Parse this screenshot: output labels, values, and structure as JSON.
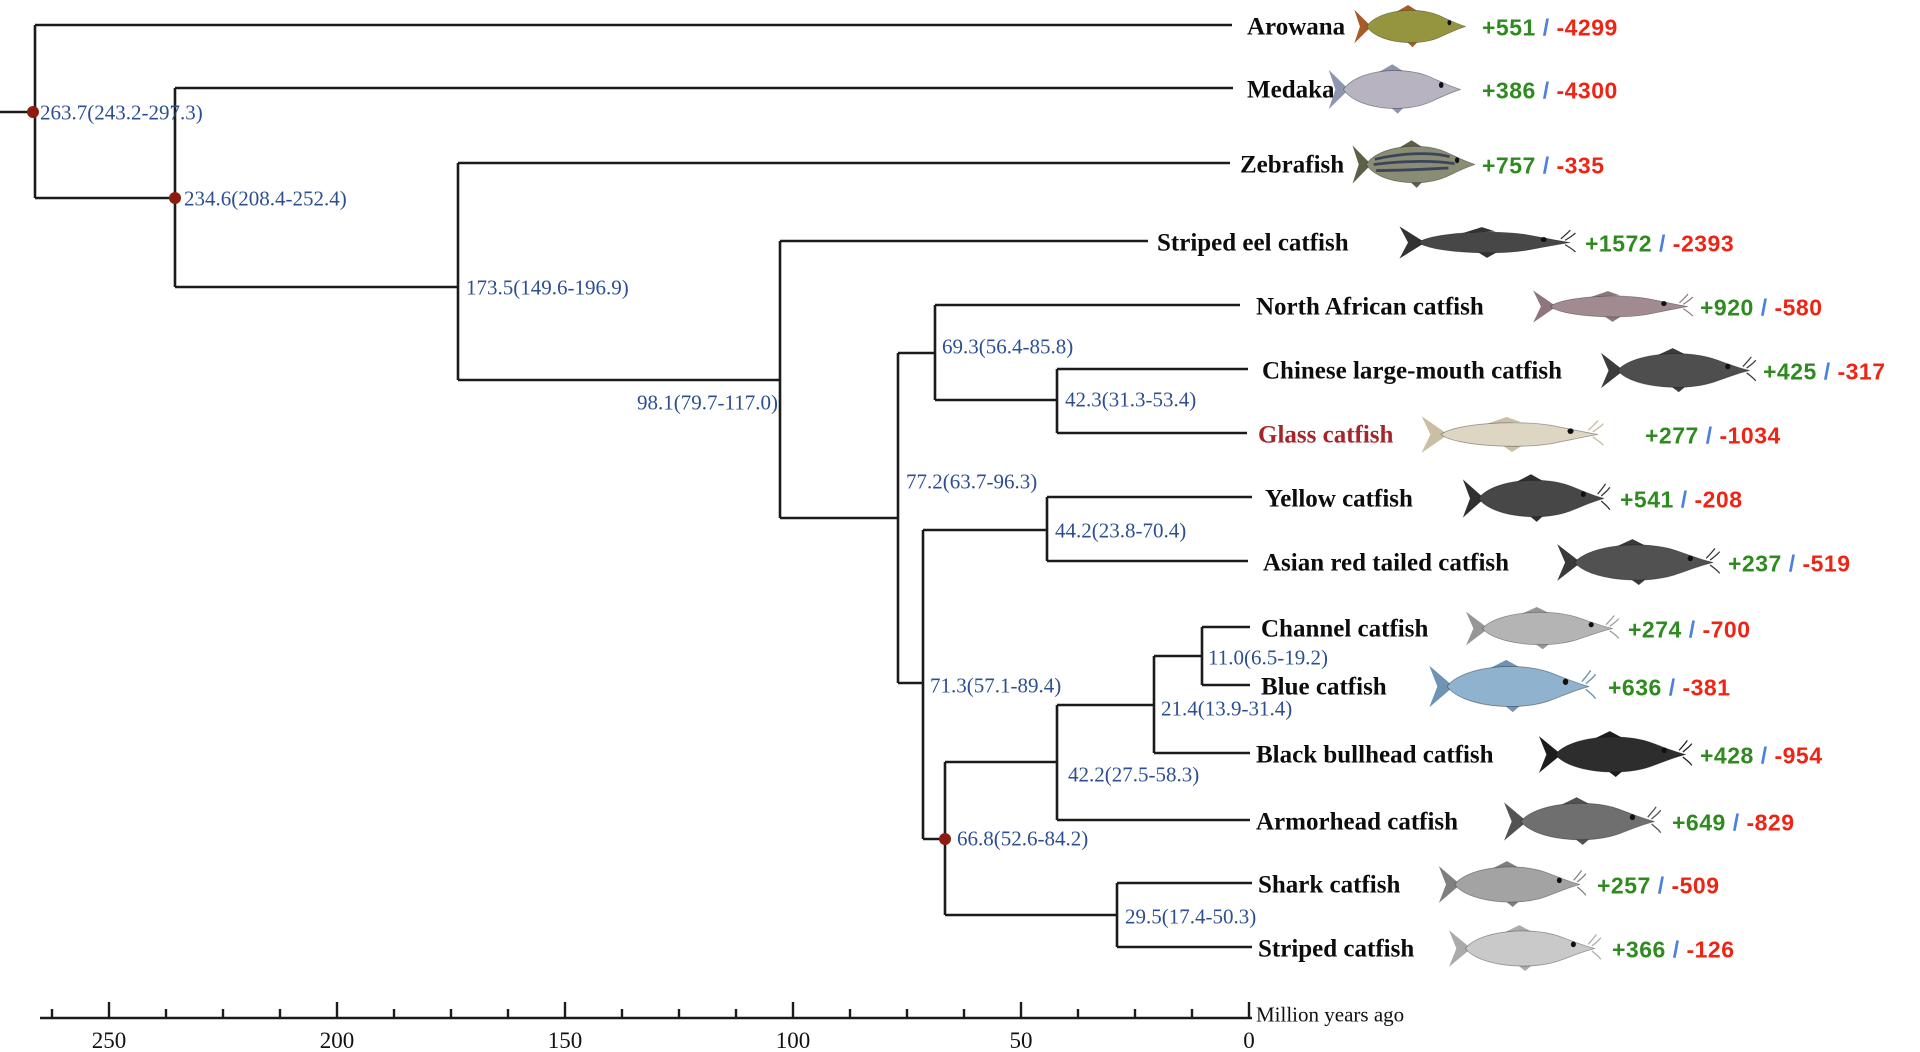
{
  "figure": {
    "axis_title": "Million years ago",
    "axis_ticks": [
      "250",
      "200",
      "150",
      "100",
      "50",
      "0"
    ]
  },
  "colors": {
    "branch": "#1b1b1b",
    "node_label": "#2d4f91",
    "node_dot": "#8e1b10",
    "gain": "#2f8b1f",
    "loss": "#ee2415",
    "slash": "#4b7fe0",
    "species_default": "#0d0d0d",
    "species_highlight": "#a6252b"
  },
  "internal_nodes": [
    {
      "id": "root",
      "label": "263.7(243.2-297.3)",
      "dot": true
    },
    {
      "id": "n234",
      "label": "234.6(208.4-252.4)",
      "dot": true
    },
    {
      "id": "n173",
      "label": "173.5(149.6-196.9)",
      "dot": false
    },
    {
      "id": "n98",
      "label": "98.1(79.7-117.0)",
      "dot": false
    },
    {
      "id": "n77",
      "label": "77.2(63.7-96.3)",
      "dot": false
    },
    {
      "id": "n69",
      "label": "69.3(56.4-85.8)",
      "dot": false
    },
    {
      "id": "n42a",
      "label": "42.3(31.3-53.4)",
      "dot": false
    },
    {
      "id": "n44",
      "label": "44.2(23.8-70.4)",
      "dot": false
    },
    {
      "id": "n71",
      "label": "71.3(57.1-89.4)",
      "dot": false
    },
    {
      "id": "n66",
      "label": "66.8(52.6-84.2)",
      "dot": true
    },
    {
      "id": "n42b",
      "label": "42.2(27.5-58.3)",
      "dot": false
    },
    {
      "id": "n21",
      "label": "21.4(13.9-31.4)",
      "dot": false
    },
    {
      "id": "n11",
      "label": "11.0(6.5-19.2)",
      "dot": false
    },
    {
      "id": "n29",
      "label": "29.5(17.4-50.3)",
      "dot": false
    }
  ],
  "species": [
    {
      "id": "arowana",
      "name": "Arowana",
      "gain": "+551",
      "loss": "-4299",
      "highlight": false,
      "fish": {
        "body": "#96953f",
        "fin": "#a85a28",
        "barbels": false,
        "stripes": false,
        "slim": false
      }
    },
    {
      "id": "medaka",
      "name": "Medaka",
      "gain": "+386",
      "loss": "-4300",
      "highlight": false,
      "fish": {
        "body": "#b7b3c0",
        "fin": "#8d96ae",
        "barbels": false,
        "stripes": false,
        "slim": false
      }
    },
    {
      "id": "zebrafish",
      "name": "Zebrafish",
      "gain": "+757",
      "loss": "-335",
      "highlight": false,
      "fish": {
        "body": "#8a8c74",
        "fin": "#5d6048",
        "barbels": false,
        "stripes": true,
        "slim": false
      }
    },
    {
      "id": "striped-eel",
      "name": "Striped eel catfish",
      "gain": "+1572",
      "loss": "-2393",
      "highlight": false,
      "fish": {
        "body": "#474747",
        "fin": "#333333",
        "barbels": true,
        "stripes": false,
        "slim": true
      }
    },
    {
      "id": "north-african",
      "name": "North African catfish",
      "gain": "+920",
      "loss": "-580",
      "highlight": false,
      "fish": {
        "body": "#a18a90",
        "fin": "#8d777d",
        "barbels": true,
        "stripes": false,
        "slim": true
      }
    },
    {
      "id": "chinese",
      "name": "Chinese large-mouth catfish",
      "gain": "+425",
      "loss": "-317",
      "highlight": false,
      "fish": {
        "body": "#4e4e4e",
        "fin": "#3c3c3c",
        "barbels": true,
        "stripes": false,
        "slim": false
      }
    },
    {
      "id": "glass",
      "name": "Glass catfish",
      "gain": "+277",
      "loss": "-1034",
      "highlight": true,
      "fish": {
        "body": "#ddd6c2",
        "fin": "#c9bfa4",
        "barbels": true,
        "stripes": false,
        "slim": true
      }
    },
    {
      "id": "yellow",
      "name": "Yellow catfish",
      "gain": "+541",
      "loss": "-208",
      "highlight": false,
      "fish": {
        "body": "#474747",
        "fin": "#303030",
        "barbels": true,
        "stripes": false,
        "slim": false
      }
    },
    {
      "id": "asian-red",
      "name": "Asian red tailed catfish",
      "gain": "+237",
      "loss": "-519",
      "highlight": false,
      "fish": {
        "body": "#515151",
        "fin": "#3a3a3a",
        "barbels": true,
        "stripes": false,
        "slim": false
      }
    },
    {
      "id": "channel",
      "name": "Channel catfish",
      "gain": "+274",
      "loss": "-700",
      "highlight": false,
      "fish": {
        "body": "#b4b4b4",
        "fin": "#969696",
        "barbels": true,
        "stripes": false,
        "slim": false
      }
    },
    {
      "id": "blue",
      "name": "Blue catfish",
      "gain": "+636",
      "loss": "-381",
      "highlight": false,
      "fish": {
        "body": "#8fb3cf",
        "fin": "#6f93b3",
        "barbels": true,
        "stripes": false,
        "slim": false
      }
    },
    {
      "id": "black-bullhead",
      "name": "Black bullhead catfish",
      "gain": "+428",
      "loss": "-954",
      "highlight": false,
      "fish": {
        "body": "#2d2d2d",
        "fin": "#1d1d1d",
        "barbels": true,
        "stripes": false,
        "slim": false
      }
    },
    {
      "id": "armorhead",
      "name": "Armorhead catfish",
      "gain": "+649",
      "loss": "-829",
      "highlight": false,
      "fish": {
        "body": "#6f6f6f",
        "fin": "#525252",
        "barbels": true,
        "stripes": false,
        "slim": false
      }
    },
    {
      "id": "shark",
      "name": "Shark catfish",
      "gain": "+257",
      "loss": "-509",
      "highlight": false,
      "fish": {
        "body": "#a3a3a3",
        "fin": "#7f7f7f",
        "barbels": true,
        "stripes": false,
        "slim": false
      }
    },
    {
      "id": "striped",
      "name": "Striped catfish",
      "gain": "+366",
      "loss": "-126",
      "highlight": false,
      "fish": {
        "body": "#c9c9c9",
        "fin": "#ababab",
        "barbels": true,
        "stripes": false,
        "slim": false
      }
    }
  ]
}
